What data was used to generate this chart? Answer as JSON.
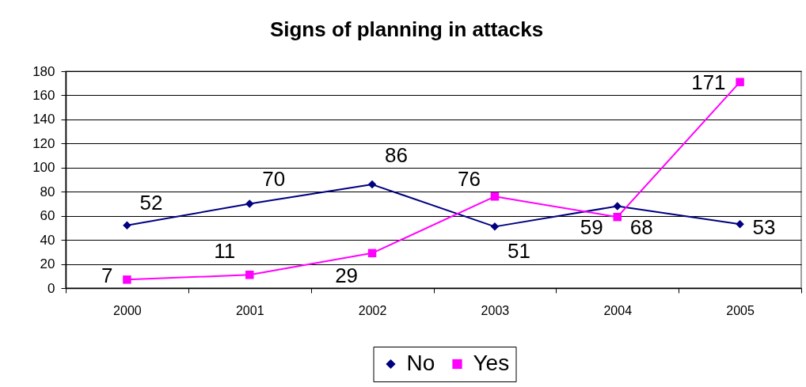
{
  "chart_data": {
    "type": "line",
    "title": "Signs of planning in attacks",
    "categories": [
      "2000",
      "2001",
      "2002",
      "2003",
      "2004",
      "2005"
    ],
    "series": [
      {
        "name": "No",
        "color": "#000080",
        "marker": "diamond",
        "values": [
          52,
          70,
          86,
          51,
          68,
          53
        ]
      },
      {
        "name": "Yes",
        "color": "#ff00ff",
        "marker": "square",
        "values": [
          7,
          11,
          29,
          76,
          59,
          171
        ]
      }
    ],
    "ylim": [
      0,
      180
    ],
    "yticks": [
      0,
      20,
      40,
      60,
      80,
      100,
      120,
      140,
      160,
      180
    ],
    "grid": "y",
    "legend": "bottom",
    "data_labels": true
  }
}
